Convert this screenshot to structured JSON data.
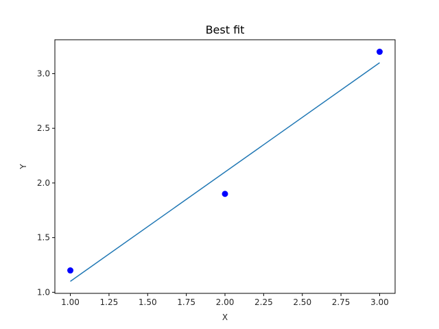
{
  "chart_data": {
    "type": "scatter",
    "title": "Best fit",
    "xlabel": "X",
    "ylabel": "Y",
    "xlim": [
      0.9,
      3.1
    ],
    "ylim": [
      0.99,
      3.31
    ],
    "grid": false,
    "x_ticks": [
      1.0,
      1.25,
      1.5,
      1.75,
      2.0,
      2.25,
      2.5,
      2.75,
      3.0
    ],
    "x_tick_labels": [
      "1.00",
      "1.25",
      "1.50",
      "1.75",
      "2.00",
      "2.25",
      "2.50",
      "2.75",
      "3.00"
    ],
    "y_ticks": [
      1.0,
      1.5,
      2.0,
      2.5,
      3.0
    ],
    "y_tick_labels": [
      "1.0",
      "1.5",
      "2.0",
      "2.5",
      "3.0"
    ],
    "series": [
      {
        "kind": "scatter",
        "color": "#0000ff",
        "points": [
          {
            "x": 1.0,
            "y": 1.2
          },
          {
            "x": 2.0,
            "y": 1.9
          },
          {
            "x": 3.0,
            "y": 3.2
          }
        ]
      },
      {
        "kind": "line",
        "color": "#1f77b4",
        "points": [
          {
            "x": 1.0,
            "y": 1.1
          },
          {
            "x": 3.0,
            "y": 3.1
          }
        ]
      }
    ]
  }
}
